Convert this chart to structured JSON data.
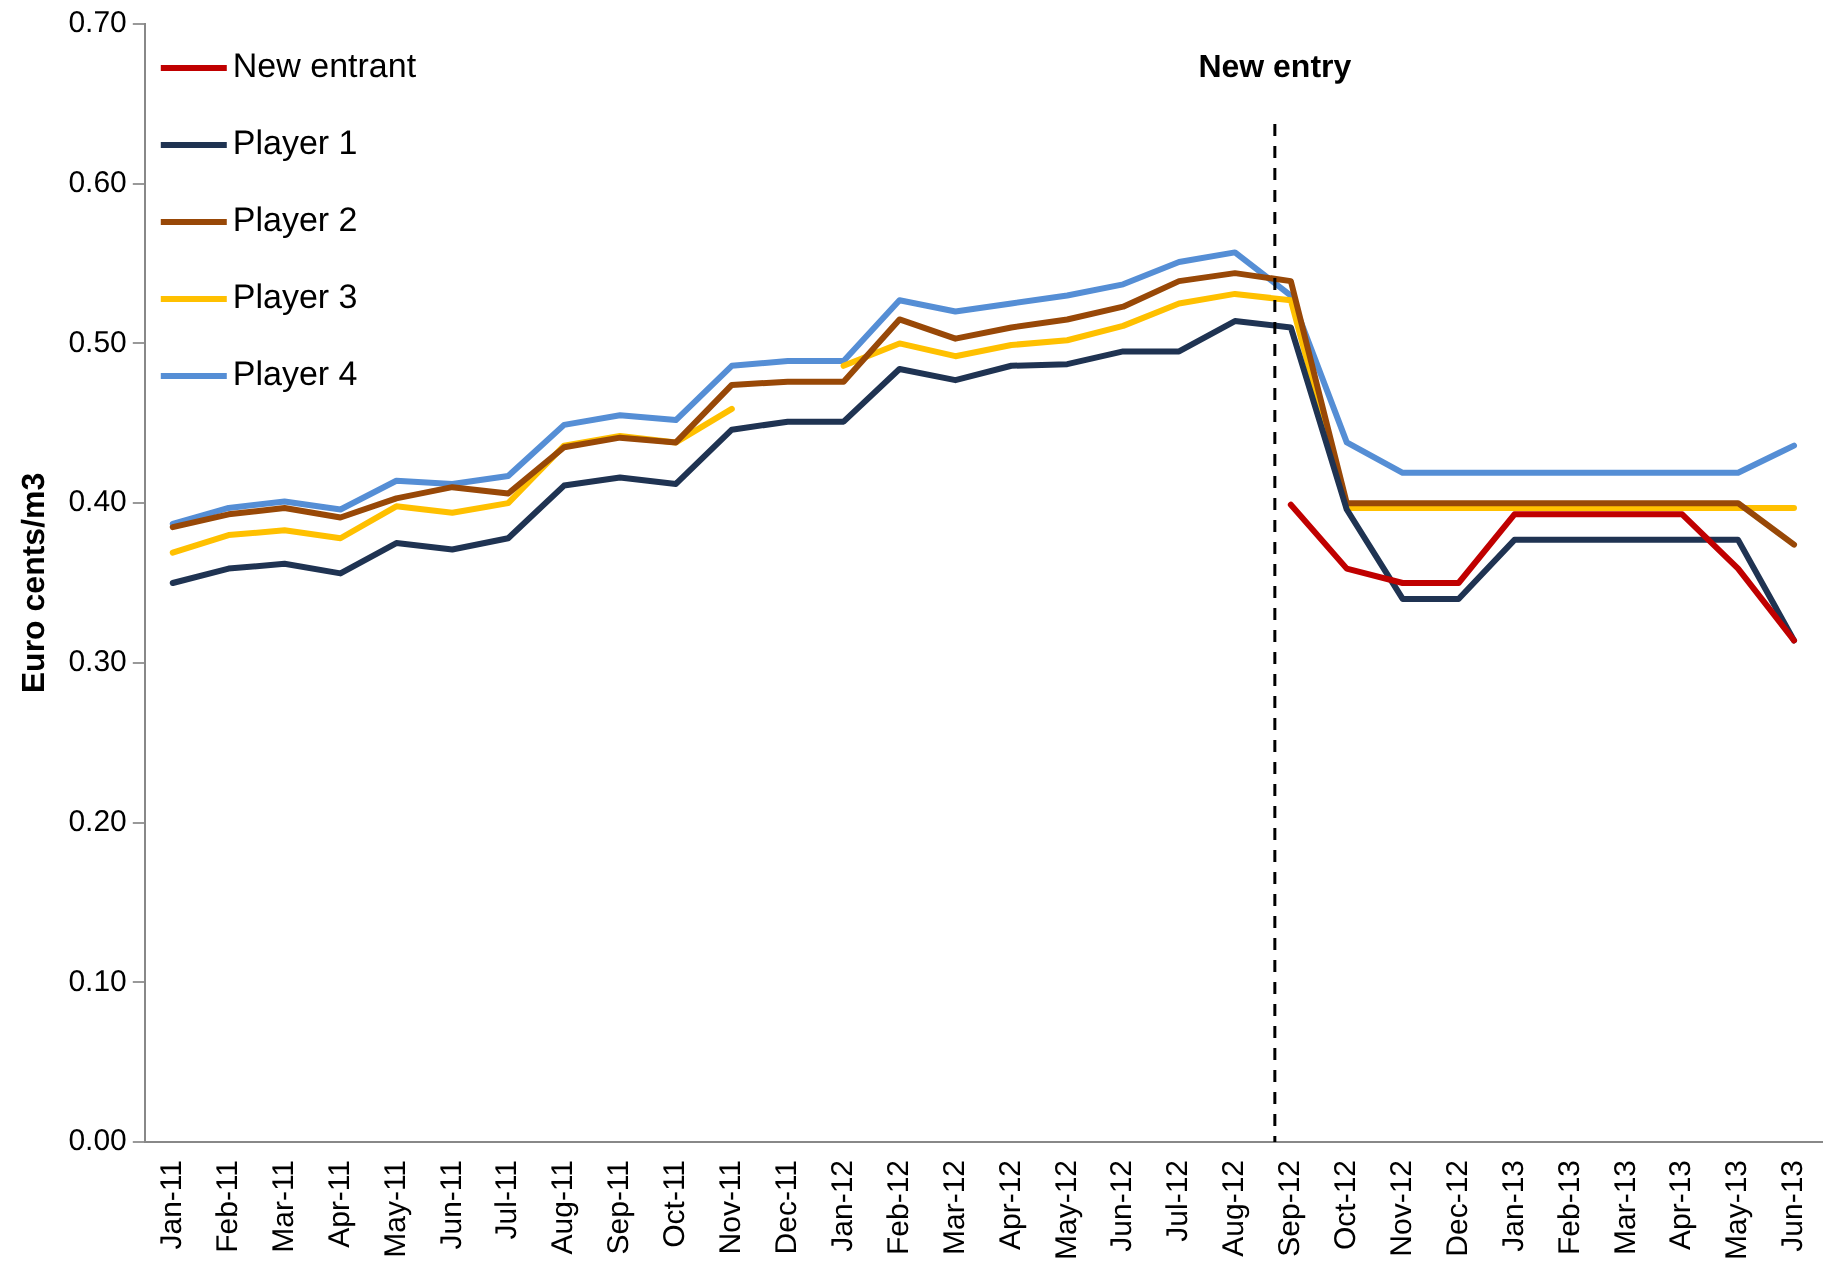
{
  "chart_data": {
    "type": "line",
    "ylabel": "Euro cents/m3",
    "categories": [
      "Jan-11",
      "Feb-11",
      "Mar-11",
      "Apr-11",
      "May-11",
      "Jun-11",
      "Jul-11",
      "Aug-11",
      "Sep-11",
      "Oct-11",
      "Nov-11",
      "Dec-11",
      "Jan-12",
      "Feb-12",
      "Mar-12",
      "Apr-12",
      "May-12",
      "Jun-12",
      "Jul-12",
      "Aug-12",
      "Sep-12",
      "Oct-12",
      "Nov-12",
      "Dec-12",
      "Jan-13",
      "Feb-13",
      "Mar-13",
      "Apr-13",
      "May-13",
      "Jun-13"
    ],
    "series": [
      {
        "name": "New entrant",
        "color": "#c00000",
        "values": [
          null,
          null,
          null,
          null,
          null,
          null,
          null,
          null,
          null,
          null,
          null,
          null,
          null,
          null,
          null,
          null,
          null,
          null,
          null,
          null,
          0.399,
          0.359,
          0.35,
          0.35,
          0.393,
          0.393,
          0.393,
          0.393,
          0.359,
          0.314
        ]
      },
      {
        "name": "Player 1",
        "color": "#1f3352",
        "values": [
          0.35,
          0.359,
          0.362,
          0.356,
          0.375,
          0.371,
          0.378,
          0.411,
          0.416,
          0.412,
          0.446,
          0.451,
          0.451,
          0.484,
          0.477,
          0.486,
          0.487,
          0.495,
          0.495,
          0.514,
          0.51,
          0.396,
          0.34,
          0.34,
          0.377,
          0.377,
          0.377,
          0.377,
          0.377,
          0.314
        ]
      },
      {
        "name": "Player 2",
        "color": "#984807",
        "values": [
          0.385,
          0.393,
          0.397,
          0.391,
          0.403,
          0.41,
          0.406,
          0.435,
          0.441,
          0.438,
          0.474,
          0.476,
          0.476,
          0.515,
          0.503,
          0.51,
          0.515,
          0.523,
          0.539,
          0.544,
          0.539,
          0.4,
          0.4,
          0.4,
          0.4,
          0.4,
          0.4,
          0.4,
          0.4,
          0.374
        ]
      },
      {
        "name": "Player 3",
        "color": "#ffc000",
        "values": [
          0.369,
          0.38,
          0.383,
          0.378,
          0.398,
          0.394,
          0.4,
          0.436,
          0.442,
          0.438,
          0.459,
          null,
          0.486,
          0.5,
          0.492,
          0.499,
          0.502,
          0.511,
          0.525,
          0.531,
          0.527,
          0.397,
          0.397,
          0.397,
          0.397,
          0.397,
          0.397,
          0.397,
          0.397,
          0.397
        ]
      },
      {
        "name": "Player 4",
        "color": "#558ed5",
        "values": [
          0.387,
          0.397,
          0.401,
          0.396,
          0.414,
          0.412,
          0.417,
          0.449,
          0.455,
          0.452,
          0.486,
          0.489,
          0.489,
          0.527,
          0.52,
          0.525,
          0.53,
          0.537,
          0.551,
          0.557,
          0.53,
          0.438,
          0.419,
          0.419,
          0.419,
          0.419,
          0.419,
          0.419,
          0.419,
          0.436
        ]
      }
    ],
    "ylim": [
      0,
      0.7
    ],
    "yticks": [
      {
        "value": 0,
        "label": "0.00"
      },
      {
        "value": 0.1,
        "label": "0.10"
      },
      {
        "value": 0.2,
        "label": "0.20"
      },
      {
        "value": 0.3,
        "label": "0.30"
      },
      {
        "value": 0.4,
        "label": "0.40"
      },
      {
        "value": 0.5,
        "label": "0.50"
      },
      {
        "value": 0.6,
        "label": "0.60"
      },
      {
        "value": 0.7,
        "label": "0.70"
      }
    ],
    "ref_lines": [
      {
        "axis": "x",
        "value": "Sep-12",
        "label": "New entry",
        "color": "#000000",
        "line_style": "dashed"
      }
    ],
    "grid": false,
    "legend": "top left",
    "marker": "none",
    "line_style": "solid"
  }
}
